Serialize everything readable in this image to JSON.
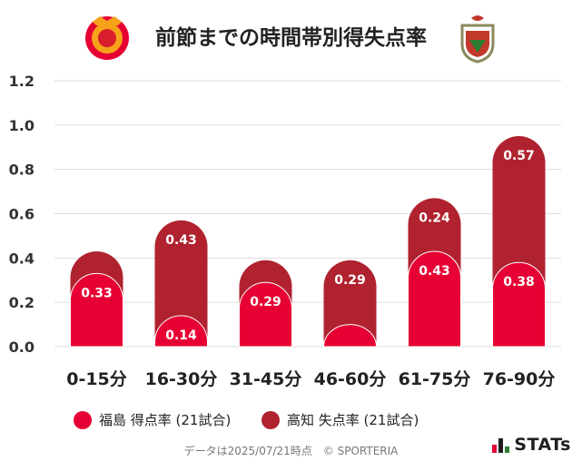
{
  "title": "前節までの時間帯別得失点率",
  "colors": {
    "home": "#e60033",
    "away": "#b0222f",
    "grid": "#dddddd",
    "axis_text": "#333333"
  },
  "chart_data": {
    "type": "bar",
    "title": "前節までの時間帯別得失点率",
    "categories": [
      "0-15分",
      "16-30分",
      "31-45分",
      "46-60分",
      "61-75分",
      "76-90分"
    ],
    "series": [
      {
        "name": "福島 得点率 (21試合)",
        "values": [
          0.33,
          0.14,
          0.29,
          0.1,
          0.43,
          0.38
        ]
      },
      {
        "name": "高知 失点率 (21試合)",
        "values": [
          0.1,
          0.43,
          0.1,
          0.29,
          0.24,
          0.57
        ]
      }
    ],
    "data_labels": {
      "home": [
        "0.33",
        "0.14",
        "0.29",
        "",
        "0.43",
        "0.38"
      ],
      "away": [
        "",
        "0.43",
        "",
        "0.29",
        "0.24",
        "0.57"
      ]
    },
    "y_ticks": [
      "0.0",
      "0.2",
      "0.4",
      "0.6",
      "0.8",
      "1.0",
      "1.2"
    ],
    "ylim": [
      0,
      1.2
    ],
    "grid": true,
    "legend_position": "bottom-left"
  },
  "legend": [
    {
      "label": "福島 得点率 (21試合)",
      "color": "#e60033"
    },
    {
      "label": "高知 失点率 (21試合)",
      "color": "#b0222f"
    }
  ],
  "footer": "データは2025/07/21時点　© SPORTERIA",
  "brand": "STATs"
}
